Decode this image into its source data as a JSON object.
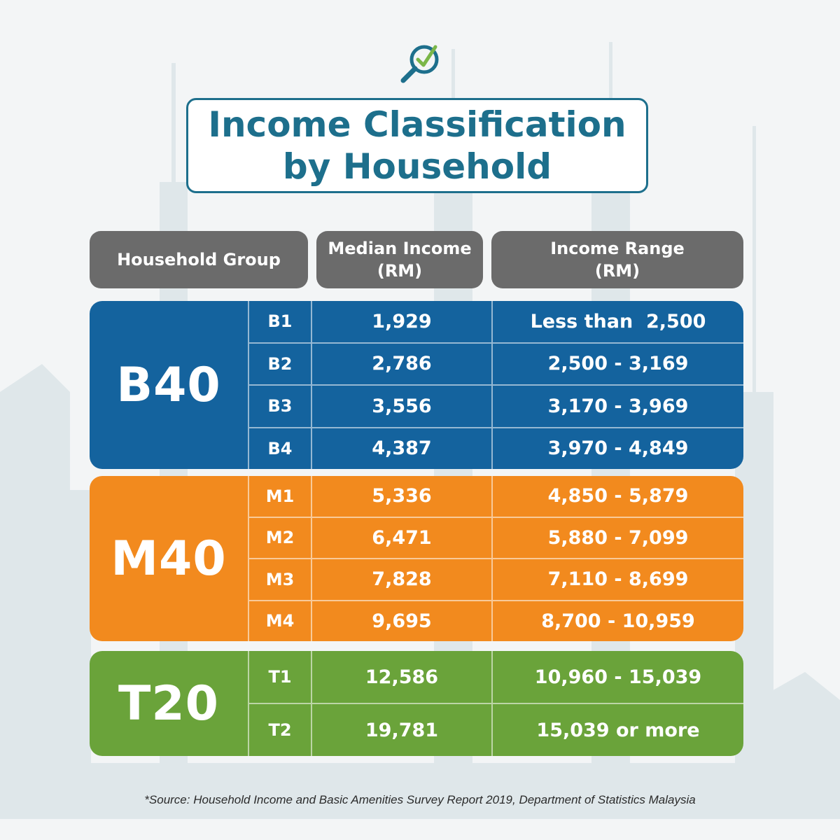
{
  "title": {
    "line1": "Income Classification",
    "line2": "by Household"
  },
  "headers": {
    "group": "Household Group",
    "median_line1": "Median Income",
    "median_line2": "(RM)",
    "range_line1": "Income Range",
    "range_line2": "(RM)"
  },
  "groups": [
    {
      "label": "B40",
      "color": "#14639e",
      "rows": [
        {
          "code": "B1",
          "median": "1,929",
          "range": "Less than  2,500"
        },
        {
          "code": "B2",
          "median": "2,786",
          "range": "2,500 - 3,169"
        },
        {
          "code": "B3",
          "median": "3,556",
          "range": "3,170 - 3,969"
        },
        {
          "code": "B4",
          "median": "4,387",
          "range": "3,970 - 4,849"
        }
      ]
    },
    {
      "label": "M40",
      "color": "#f28a1e",
      "rows": [
        {
          "code": "M1",
          "median": "5,336",
          "range": "4,850 - 5,879"
        },
        {
          "code": "M2",
          "median": "6,471",
          "range": "5,880 - 7,099"
        },
        {
          "code": "M3",
          "median": "7,828",
          "range": "7,110 - 8,699"
        },
        {
          "code": "M4",
          "median": "9,695",
          "range": "8,700 - 10,959"
        }
      ]
    },
    {
      "label": "T20",
      "color": "#6aa33a",
      "rows": [
        {
          "code": "T1",
          "median": "12,586",
          "range": "10,960 - 15,039"
        },
        {
          "code": "T2",
          "median": "19,781",
          "range": "15,039 or more"
        }
      ]
    }
  ],
  "source": "*Source:  Household Income and Basic Amenities Survey Report 2019, Department of Statistics Malaysia",
  "icons": {
    "logo": "magnifier-check-icon"
  },
  "colors": {
    "title": "#1d6f8c",
    "header": "#6b6b6b",
    "background": "#f3f5f6"
  }
}
